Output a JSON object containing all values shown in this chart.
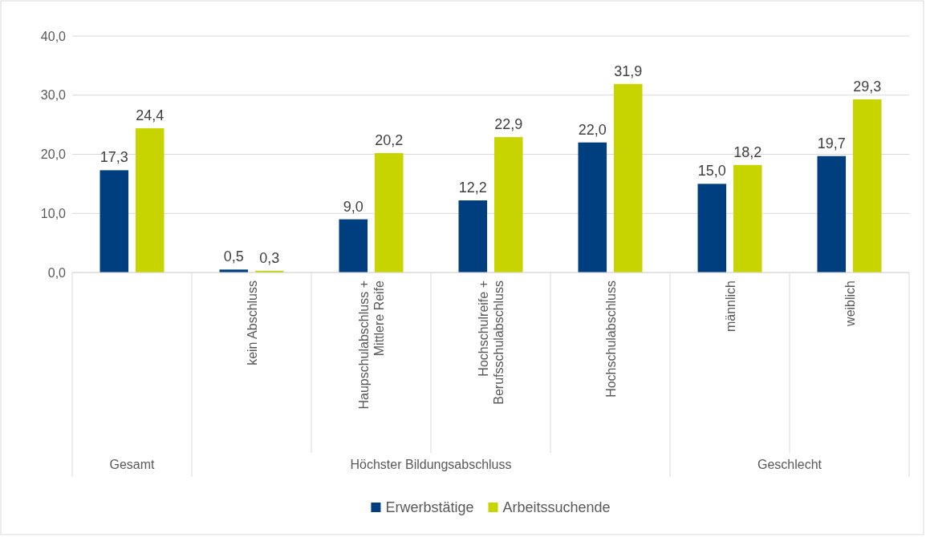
{
  "chart_data": {
    "type": "bar",
    "categories": [
      null,
      "kein Abschluss",
      "Haupschulabschluss + Mittlere Reife",
      "Hochschulreife + Berufsschulabschluss",
      "Hochschulabschluss",
      "männlich",
      "weiblich"
    ],
    "series": [
      {
        "name": "Erwerbstätige",
        "color": "#003f7f",
        "values": [
          17.3,
          0.5,
          9.0,
          12.2,
          22.0,
          15.0,
          19.7
        ],
        "value_labels": [
          "17,3",
          "0,5",
          "9,0",
          "12,2",
          "22,0",
          "15,0",
          "19,7"
        ]
      },
      {
        "name": "Arbeitssuchende",
        "color": "#c8d400",
        "values": [
          24.4,
          0.3,
          20.2,
          22.9,
          31.9,
          18.2,
          29.3
        ],
        "value_labels": [
          "24,4",
          "0,3",
          "20,2",
          "22,9",
          "31,9",
          "18,2",
          "29,3"
        ]
      }
    ],
    "annotations": [
      "Gesamt",
      "Höchster Bildungsabschluss",
      "Geschlecht"
    ],
    "ylim": [
      0,
      40
    ],
    "yticks": [
      {
        "value": 0,
        "label": "0,0"
      },
      {
        "value": 10,
        "label": "10,0"
      },
      {
        "value": 20,
        "label": "20,0"
      },
      {
        "value": 30,
        "label": "30,0"
      },
      {
        "value": 40,
        "label": "40,0"
      }
    ],
    "grid": "y",
    "legend": "bottom"
  }
}
